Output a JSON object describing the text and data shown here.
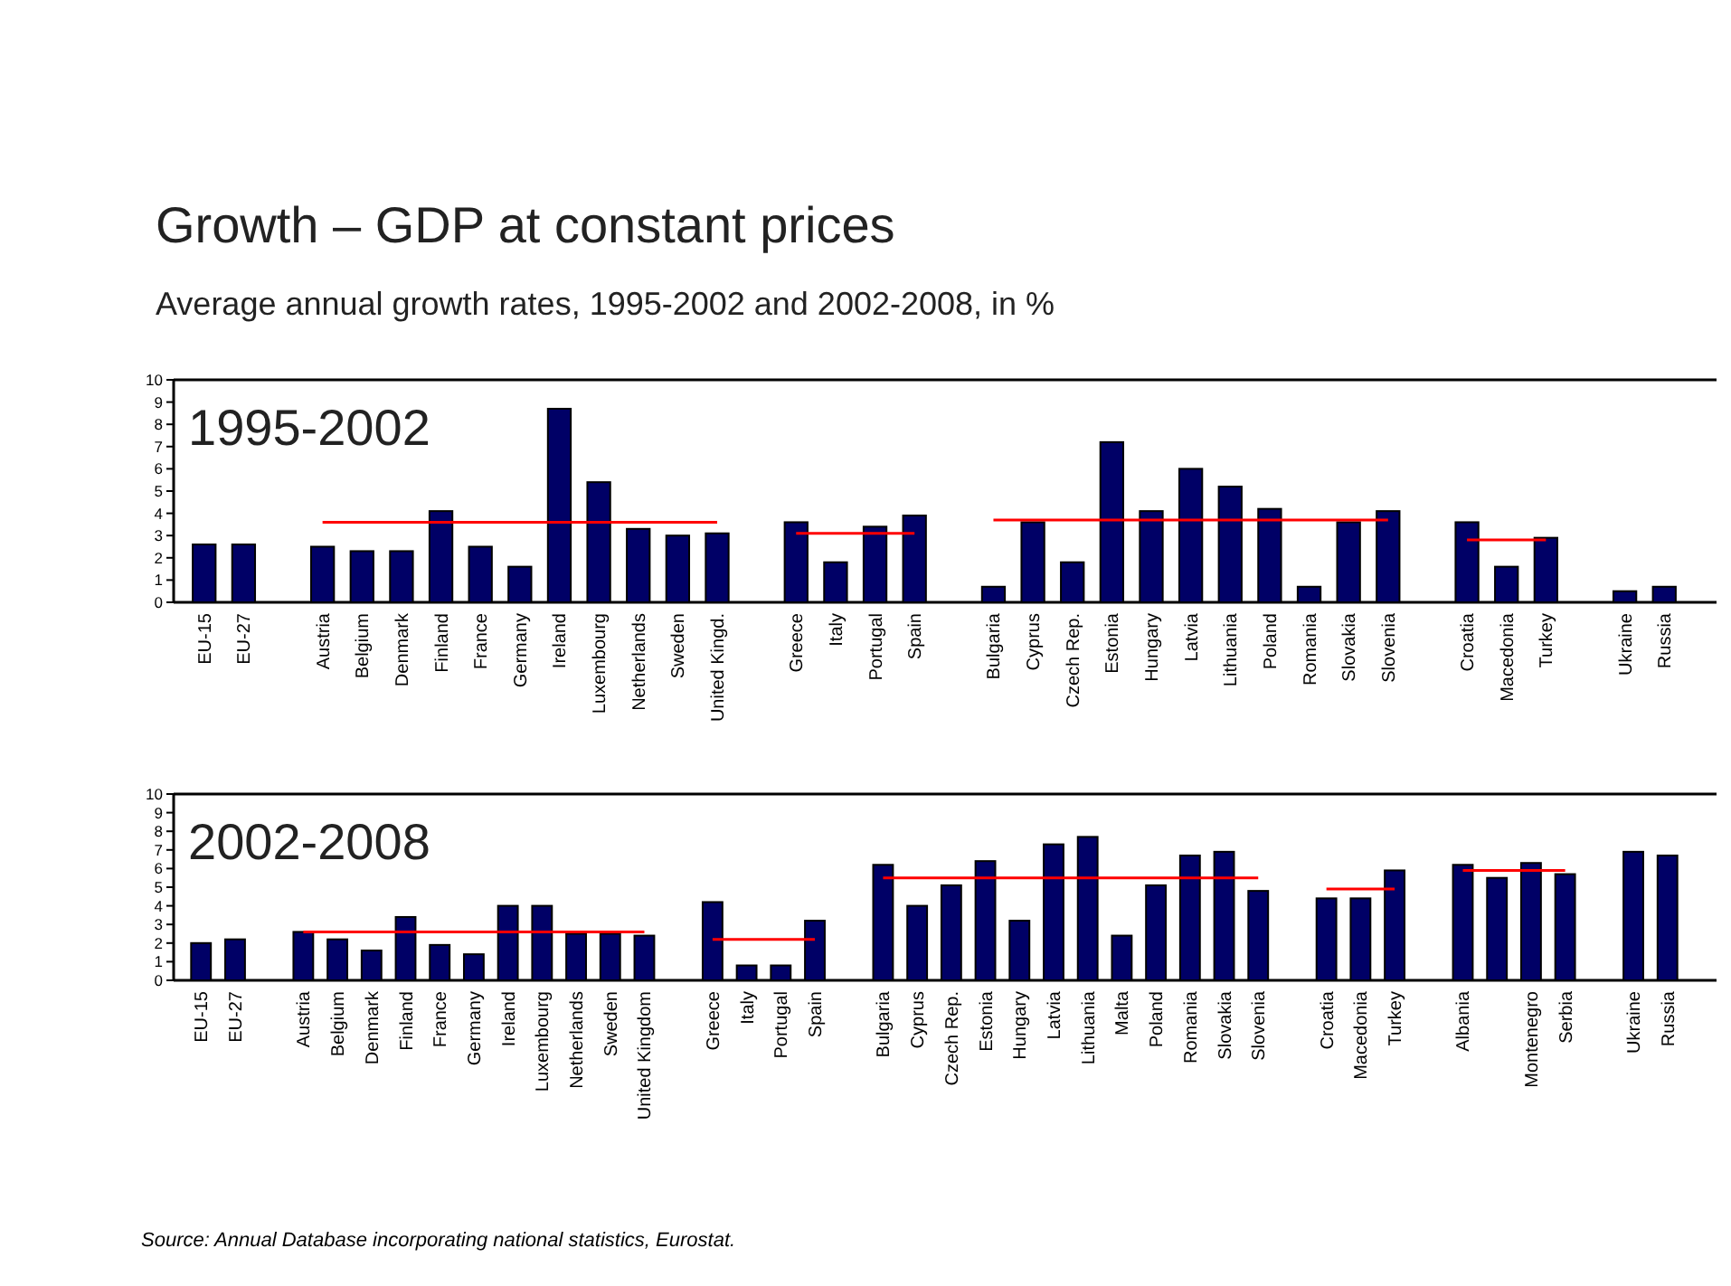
{
  "chart_data": [
    {
      "type": "bar",
      "title": "Growth – GDP at constant prices",
      "subtitle": "Average annual growth rates, 1995-2002 and 2002-2008, in %",
      "annotations": [
        "1995-2002"
      ],
      "categories": [
        "EU-15",
        "EU-27",
        null,
        "Austria",
        "Belgium",
        "Denmark",
        "Finland",
        "France",
        "Germany",
        "Ireland",
        "Luxembourg",
        "Netherlands",
        "Sweden",
        "United Kingd.",
        null,
        "Greece",
        "Italy",
        "Portugal",
        "Spain",
        null,
        "Bulgaria",
        "Cyprus",
        "Czech Rep.",
        "Estonia",
        "Hungary",
        "Latvia",
        "Lithuania",
        "Poland",
        "Romania",
        "Slovakia",
        "Slovenia",
        null,
        "Croatia",
        "Macedonia",
        "Turkey",
        null,
        "Ukraine",
        "Russia"
      ],
      "series": [
        {
          "color": "#000066",
          "values": [
            2.6,
            2.6,
            null,
            2.5,
            2.3,
            2.3,
            4.1,
            2.5,
            1.6,
            8.7,
            5.4,
            3.3,
            3.0,
            3.1,
            null,
            3.6,
            1.8,
            3.4,
            3.9,
            null,
            0.7,
            3.6,
            1.8,
            7.2,
            4.1,
            6.0,
            5.2,
            4.2,
            0.7,
            3.6,
            4.1,
            null,
            3.6,
            1.6,
            2.9,
            null,
            0.5,
            0.7
          ]
        },
        {
          "type": "line",
          "color": "#ff0000",
          "values": [
            null,
            null,
            null,
            3.6,
            3.6,
            3.6,
            3.6,
            3.6,
            3.6,
            3.6,
            3.6,
            3.6,
            3.6,
            3.6,
            null,
            3.1,
            3.1,
            3.1,
            3.1,
            null,
            3.7,
            3.7,
            3.7,
            3.7,
            3.7,
            3.7,
            3.7,
            3.7,
            3.7,
            3.7,
            3.7,
            null,
            2.8,
            2.8,
            2.8,
            null,
            null,
            null
          ]
        }
      ],
      "ylim": [
        0,
        10
      ],
      "yticks": [
        0,
        1,
        2,
        3,
        4,
        5,
        6,
        7,
        8,
        9,
        10
      ]
    },
    {
      "type": "bar",
      "annotations": [
        "2002-2008",
        "Source: Annual Database incorporating national statistics, Eurostat."
      ],
      "categories": [
        "EU-15",
        "EU-27",
        null,
        "Austria",
        "Belgium",
        "Denmark",
        "Finland",
        "France",
        "Germany",
        "Ireland",
        "Luxembourg",
        "Netherlands",
        "Sweden",
        "United Kingdom",
        null,
        "Greece",
        "Italy",
        "Portugal",
        "Spain",
        null,
        "Bulgaria",
        "Cyprus",
        "Czech Rep.",
        "Estonia",
        "Hungary",
        "Latvia",
        "Lithuania",
        "Malta",
        "Poland",
        "Romania",
        "Slovakia",
        "Slovenia",
        null,
        "Croatia",
        "Macedonia",
        "Turkey",
        null,
        "Albania",
        null,
        "Montenegro",
        "Serbia",
        null,
        "Ukraine",
        "Russia"
      ],
      "series": [
        {
          "color": "#000066",
          "values": [
            2.0,
            2.2,
            null,
            2.6,
            2.2,
            1.6,
            3.4,
            1.9,
            1.4,
            4.0,
            4.0,
            2.5,
            2.5,
            2.4,
            null,
            4.2,
            0.8,
            0.8,
            3.2,
            null,
            6.2,
            4.0,
            5.1,
            6.4,
            3.2,
            7.3,
            7.7,
            2.4,
            5.1,
            6.7,
            6.9,
            4.8,
            null,
            4.4,
            4.4,
            5.9,
            null,
            6.2,
            5.5,
            6.3,
            5.7,
            null,
            6.9,
            6.7
          ]
        },
        {
          "type": "line",
          "color": "#ff0000",
          "values": [
            null,
            null,
            null,
            2.6,
            2.6,
            2.6,
            2.6,
            2.6,
            2.6,
            2.6,
            2.6,
            2.6,
            2.6,
            2.6,
            null,
            2.2,
            2.2,
            2.2,
            2.2,
            null,
            5.5,
            5.5,
            5.5,
            5.5,
            5.5,
            5.5,
            5.5,
            5.5,
            5.5,
            5.5,
            5.5,
            5.5,
            null,
            4.9,
            4.9,
            4.9,
            null,
            5.9,
            5.9,
            5.9,
            5.9,
            null,
            null,
            null
          ]
        }
      ],
      "ylim": [
        0,
        10
      ],
      "yticks": [
        0,
        1,
        2,
        3,
        4,
        5,
        6,
        7,
        8,
        9,
        10
      ]
    }
  ]
}
